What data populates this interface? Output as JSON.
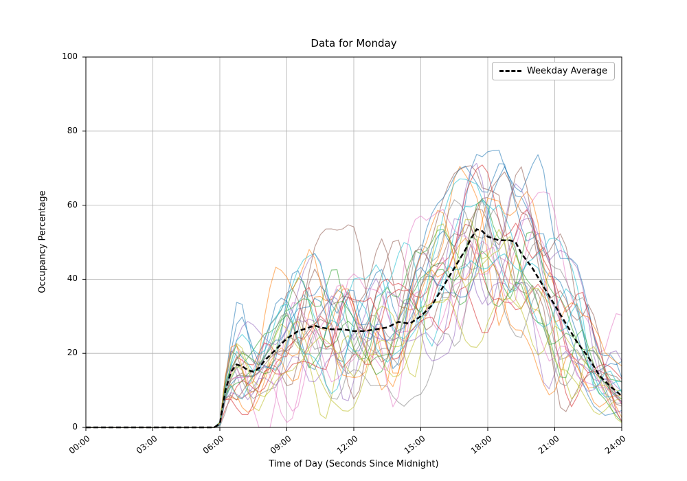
{
  "chart_data": {
    "type": "line",
    "title": "Data for Monday",
    "xlabel": "Time of Day (Seconds Since Midnight)",
    "ylabel": "Occupancy Percentage",
    "legend_label": "Weekday Average",
    "legend_position": "upper right",
    "grid": true,
    "grid_color": "#b0b0b0",
    "spine_color": "#000000",
    "ylim": [
      0,
      100
    ],
    "xlim_hours": [
      0,
      24
    ],
    "y_ticks": [
      0,
      20,
      40,
      60,
      80,
      100
    ],
    "x_ticks": [
      {
        "hour": 0,
        "label": "00:00"
      },
      {
        "hour": 3,
        "label": "03:00"
      },
      {
        "hour": 6,
        "label": "06:00"
      },
      {
        "hour": 9,
        "label": "09:00"
      },
      {
        "hour": 12,
        "label": "12:00"
      },
      {
        "hour": 15,
        "label": "15:00"
      },
      {
        "hour": 18,
        "label": "18:00"
      },
      {
        "hour": 21,
        "label": "21:00"
      },
      {
        "hour": 24,
        "label": "24:00"
      }
    ],
    "average_series": {
      "name": "Weekday Average",
      "color": "#000000",
      "dashed": true,
      "width": 2.5,
      "hours": [
        0,
        5.9,
        6.0,
        6.25,
        6.5,
        6.75,
        7.0,
        7.25,
        7.5,
        7.75,
        8.0,
        8.5,
        9.0,
        9.5,
        10.0,
        10.25,
        10.5,
        11.0,
        11.5,
        12.0,
        12.5,
        13.0,
        13.5,
        14.0,
        14.5,
        15.0,
        15.5,
        16.0,
        16.5,
        17.0,
        17.25,
        17.5,
        17.75,
        18.0,
        18.5,
        19.0,
        19.25,
        19.5,
        20.0,
        20.5,
        21.0,
        21.5,
        22.0,
        22.5,
        23.0,
        23.5,
        24.0
      ],
      "values": [
        0,
        0,
        1,
        10,
        15,
        17,
        16.5,
        15.5,
        15,
        16,
        18,
        21,
        24,
        26,
        27,
        27.5,
        27,
        26.5,
        26.5,
        26,
        26,
        26.5,
        27,
        28.5,
        28,
        30,
        33,
        38,
        43,
        48,
        51,
        53.5,
        53,
        51.5,
        50.5,
        50.5,
        50,
        47,
        43,
        38,
        33,
        28,
        23,
        19,
        14,
        11,
        8.5
      ]
    },
    "individual_series": {
      "count": 30,
      "alpha": 0.55,
      "width": 1.2,
      "seed": 11,
      "colors": [
        "#1f77b4",
        "#ff7f0e",
        "#2ca02c",
        "#d62728",
        "#9467bd",
        "#8c564b",
        "#e377c2",
        "#7f7f7f",
        "#bcbd22",
        "#17becf"
      ]
    }
  }
}
